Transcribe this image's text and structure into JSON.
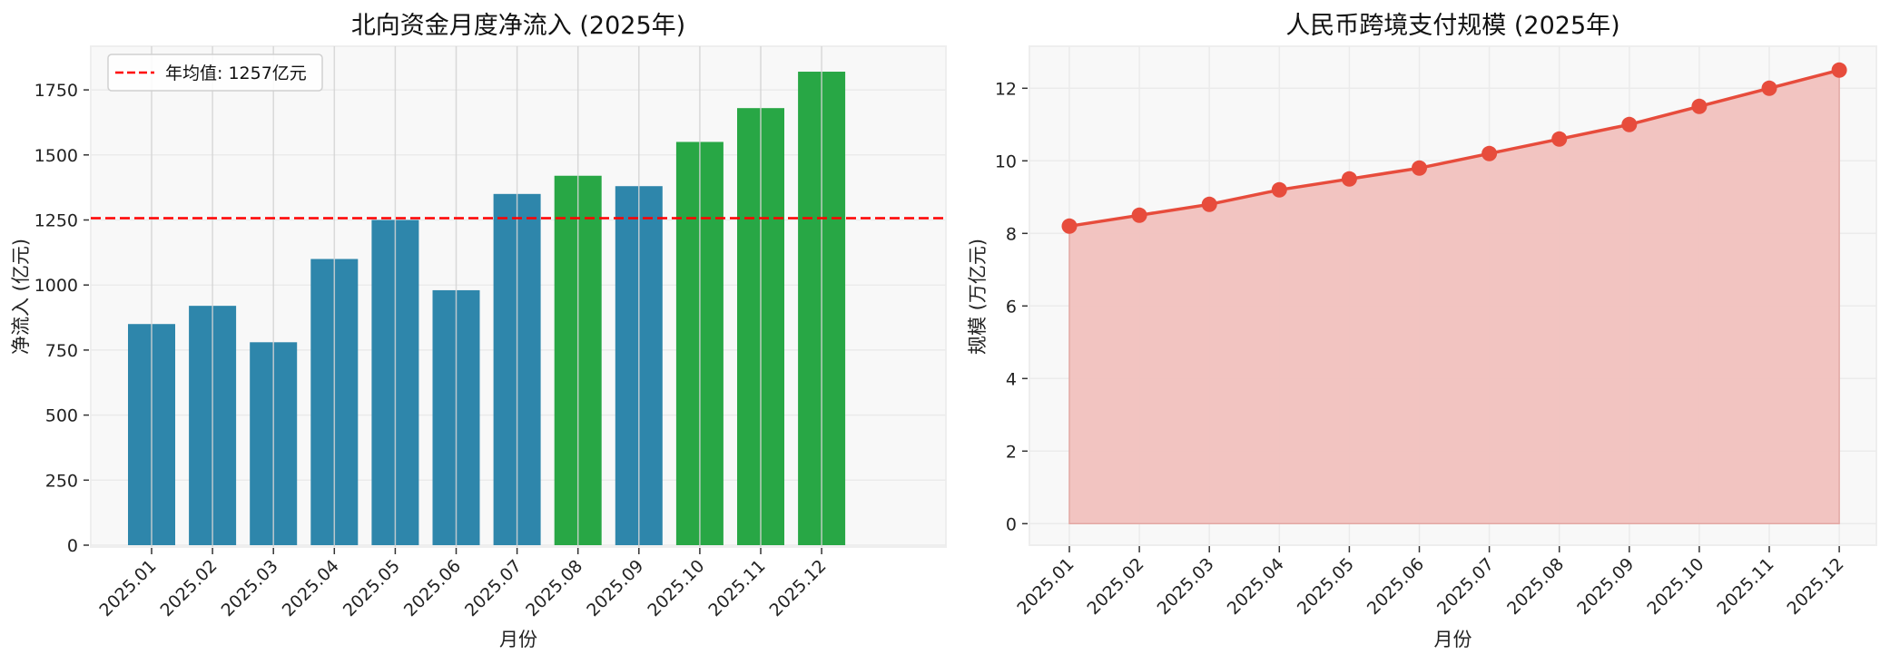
{
  "chart_data": [
    {
      "type": "bar",
      "title": "北向资金月度净流入 (2025年)",
      "xlabel": "月份",
      "ylabel": "净流入 (亿元)",
      "categories": [
        "2025.01",
        "2025.02",
        "2025.03",
        "2025.04",
        "2025.05",
        "2025.06",
        "2025.07",
        "2025.08",
        "2025.09",
        "2025.10",
        "2025.11",
        "2025.12"
      ],
      "values": [
        850,
        920,
        780,
        1100,
        1250,
        980,
        1350,
        1420,
        1380,
        1550,
        1680,
        1820
      ],
      "bar_colors": [
        "#2e86ab",
        "#2e86ab",
        "#2e86ab",
        "#2e86ab",
        "#2e86ab",
        "#2e86ab",
        "#2e86ab",
        "#28a745",
        "#2e86ab",
        "#28a745",
        "#28a745",
        "#28a745"
      ],
      "reference_line": {
        "value": 1257,
        "color": "#ff0000",
        "style": "dashed",
        "label": "年均值: 1257亿元"
      },
      "legend": {
        "position": "upper left",
        "entries": [
          "年均值: 1257亿元"
        ]
      },
      "yticks": [
        0,
        250,
        500,
        750,
        1000,
        1250,
        1500,
        1750
      ],
      "ylim": [
        0,
        1918
      ],
      "grid": true
    },
    {
      "type": "area",
      "title": "人民币跨境支付规模 (2025年)",
      "xlabel": "月份",
      "ylabel": "规模 (万亿元)",
      "categories": [
        "2025.01",
        "2025.02",
        "2025.03",
        "2025.04",
        "2025.05",
        "2025.06",
        "2025.07",
        "2025.08",
        "2025.09",
        "2025.10",
        "2025.11",
        "2025.12"
      ],
      "values": [
        8.2,
        8.5,
        8.8,
        9.2,
        9.5,
        9.8,
        10.2,
        10.6,
        11.0,
        11.5,
        12.0,
        12.5
      ],
      "line_color": "#e74c3c",
      "fill_color": "#f2c2bf",
      "markers": true,
      "yticks": [
        0,
        2,
        4,
        6,
        8,
        10,
        12
      ],
      "ylim": [
        -0.6,
        13.15
      ],
      "grid": true
    }
  ],
  "style": {
    "axes_bg": "#f8f8f8",
    "grid_color": "#ebebeb",
    "vgrid_color": "#d4d4d4"
  }
}
